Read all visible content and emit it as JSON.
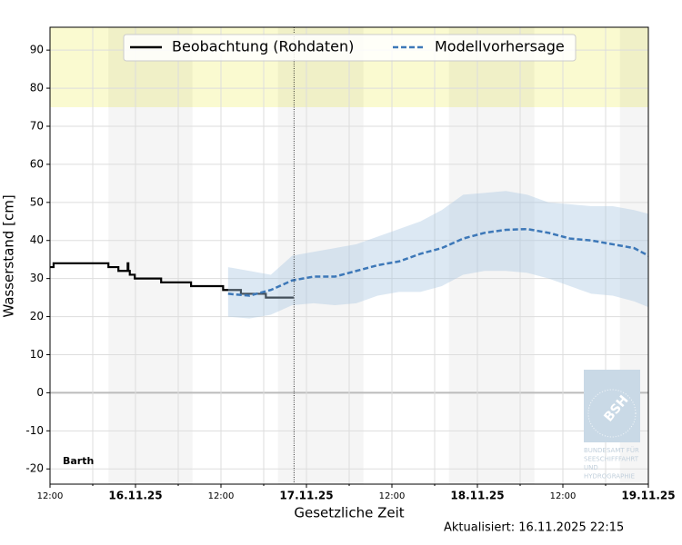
{
  "chart_data": {
    "type": "line",
    "y_label": "Wasserstand [cm]",
    "x_label": "Gesetzliche Zeit",
    "station": "Barth",
    "updated": "Aktualisiert: 16.11.2025 22:15",
    "xlim": [
      0,
      84
    ],
    "xticks": [
      {
        "value": 0,
        "label": "12:00"
      },
      {
        "value": 12,
        "label": "16.11.25"
      },
      {
        "value": 24,
        "label": "12:00"
      },
      {
        "value": 36,
        "label": "17.11.25"
      },
      {
        "value": 48,
        "label": "12:00"
      },
      {
        "value": 60,
        "label": "18.11.25"
      },
      {
        "value": 72,
        "label": "12:00"
      },
      {
        "value": 84,
        "label": "19.11.25"
      }
    ],
    "xminor": [
      6,
      18,
      30,
      42,
      54,
      66,
      78
    ],
    "ylim": [
      -24,
      96
    ],
    "yticks": [
      -20,
      -10,
      0,
      10,
      20,
      30,
      40,
      50,
      60,
      70,
      80,
      90
    ],
    "grid": true,
    "legend": "upper center",
    "now": 34.25,
    "night_shading": [
      [
        8.2,
        20
      ],
      [
        32,
        44
      ],
      [
        56,
        68
      ],
      [
        80,
        84
      ]
    ],
    "warn_band": [
      75,
      96
    ],
    "series": [
      {
        "name": "Beobachtung (Rohdaten)",
        "color": "#000000",
        "style": "step",
        "x": [
          0,
          0.5,
          8.2,
          9.6,
          10.9,
          11,
          11.2,
          11.9,
          15.6,
          19.8,
          24.3,
          26.8,
          30.3,
          34.2
        ],
        "values": [
          33,
          34,
          33,
          32,
          34,
          32,
          31,
          30,
          29,
          28,
          27,
          26,
          25,
          25
        ]
      },
      {
        "name": "Modellvorhersage",
        "color": "#3d78b8",
        "style": "dashed",
        "x": [
          25,
          28,
          31,
          34,
          37,
          40,
          43,
          46,
          49,
          52,
          55,
          58,
          61,
          64,
          67,
          70,
          73,
          76,
          79,
          82,
          84
        ],
        "values": [
          26,
          25.5,
          27,
          29.5,
          30.5,
          30.5,
          32,
          33.5,
          34.5,
          36.5,
          38,
          40.5,
          42,
          42.8,
          43,
          42,
          40.5,
          40,
          39,
          38,
          36
        ],
        "upper": [
          33,
          32,
          31,
          36,
          37,
          38,
          39,
          41,
          43,
          45,
          48,
          52,
          52.5,
          53,
          52,
          50,
          49.5,
          49,
          49,
          48,
          47
        ],
        "lower": [
          20,
          19.5,
          20.5,
          23,
          23.5,
          23,
          23.5,
          25.5,
          26.5,
          26.5,
          28,
          31,
          32,
          32,
          31.5,
          30,
          28,
          26,
          25.5,
          24,
          22.5
        ]
      }
    ],
    "logo": {
      "mark": "BSH",
      "lines": [
        "BUNDESAMT FÜR",
        "SEESCHIFFFAHRT",
        "UND",
        "HYDROGRAPHIE"
      ]
    }
  }
}
